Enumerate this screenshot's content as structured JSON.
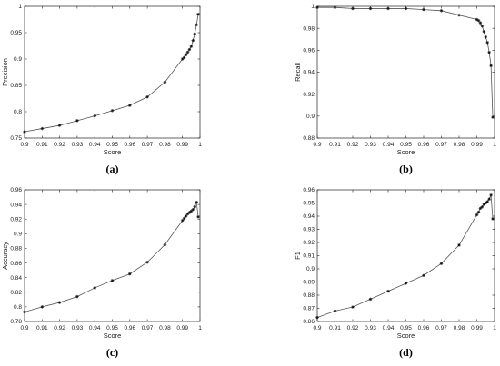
{
  "charts": [
    {
      "panel": "(a)",
      "type": "line",
      "xlabel": "Score",
      "ylabel": "Precision",
      "xlim": [
        0.9,
        1.0
      ],
      "ylim": [
        0.75,
        1.0
      ],
      "xticks": [
        "0.9",
        "0.91",
        "0.92",
        "0.93",
        "0.94",
        "0.95",
        "0.96",
        "0.97",
        "0.98",
        "0.99",
        "1"
      ],
      "yticks": [
        "0.75",
        "0.8",
        "0.85",
        "0.9",
        "0.95",
        "1"
      ],
      "marker": "asterisk",
      "x": [
        0.9,
        0.91,
        0.92,
        0.93,
        0.94,
        0.95,
        0.96,
        0.97,
        0.98,
        0.99,
        0.991,
        0.992,
        0.993,
        0.994,
        0.995,
        0.996,
        0.997,
        0.998,
        0.999
      ],
      "y": [
        0.762,
        0.768,
        0.774,
        0.783,
        0.792,
        0.802,
        0.812,
        0.828,
        0.856,
        0.9,
        0.903,
        0.908,
        0.913,
        0.918,
        0.924,
        0.935,
        0.948,
        0.965,
        0.985
      ]
    },
    {
      "panel": "(b)",
      "type": "line",
      "xlabel": "Score",
      "ylabel": "Recall",
      "xlim": [
        0.9,
        1.0
      ],
      "ylim": [
        0.88,
        1.0
      ],
      "xticks": [
        "0.9",
        "0.91",
        "0.92",
        "0.93",
        "0.94",
        "0.95",
        "0.96",
        "0.97",
        "0.98",
        "0.99",
        "1"
      ],
      "yticks": [
        "0.88",
        "0.9",
        "0.92",
        "0.94",
        "0.96",
        "0.98",
        "1"
      ],
      "marker": "asterisk",
      "x": [
        0.9,
        0.91,
        0.92,
        0.93,
        0.94,
        0.95,
        0.96,
        0.97,
        0.98,
        0.99,
        0.991,
        0.992,
        0.993,
        0.994,
        0.995,
        0.996,
        0.997,
        0.998,
        0.999
      ],
      "y": [
        0.999,
        0.999,
        0.998,
        0.998,
        0.998,
        0.998,
        0.997,
        0.996,
        0.992,
        0.988,
        0.987,
        0.985,
        0.982,
        0.977,
        0.972,
        0.967,
        0.958,
        0.946,
        0.899
      ]
    },
    {
      "panel": "(c)",
      "type": "line",
      "xlabel": "Score",
      "ylabel": "Accuracy",
      "xlim": [
        0.9,
        1.0
      ],
      "ylim": [
        0.78,
        0.96
      ],
      "xticks": [
        "0.9",
        "0.91",
        "0.92",
        "0.93",
        "0.94",
        "0.95",
        "0.96",
        "0.97",
        "0.98",
        "0.99",
        "1"
      ],
      "yticks": [
        "0.78",
        "0.8",
        "0.82",
        "0.84",
        "0.86",
        "0.88",
        "0.9",
        "0.92",
        "0.94",
        "0.96"
      ],
      "marker": "asterisk",
      "x": [
        0.9,
        0.91,
        0.92,
        0.93,
        0.94,
        0.95,
        0.96,
        0.97,
        0.98,
        0.99,
        0.991,
        0.992,
        0.993,
        0.994,
        0.995,
        0.996,
        0.997,
        0.998,
        0.999
      ],
      "y": [
        0.793,
        0.8,
        0.806,
        0.814,
        0.826,
        0.836,
        0.845,
        0.861,
        0.885,
        0.918,
        0.921,
        0.924,
        0.927,
        0.929,
        0.931,
        0.933,
        0.937,
        0.943,
        0.923
      ]
    },
    {
      "panel": "(d)",
      "type": "line",
      "xlabel": "Score",
      "ylabel": "F1",
      "xlim": [
        0.9,
        1.0
      ],
      "ylim": [
        0.86,
        0.96
      ],
      "xticks": [
        "0.9",
        "0.91",
        "0.92",
        "0.93",
        "0.94",
        "0.95",
        "0.96",
        "0.97",
        "0.98",
        "0.99",
        "1"
      ],
      "yticks": [
        "0.86",
        "0.87",
        "0.88",
        "0.89",
        "0.9",
        "0.91",
        "0.92",
        "0.93",
        "0.94",
        "0.95",
        "0.96"
      ],
      "marker": "asterisk",
      "x": [
        0.9,
        0.91,
        0.92,
        0.93,
        0.94,
        0.95,
        0.96,
        0.97,
        0.98,
        0.99,
        0.991,
        0.992,
        0.993,
        0.994,
        0.995,
        0.996,
        0.997,
        0.998,
        0.999
      ],
      "y": [
        0.863,
        0.868,
        0.871,
        0.877,
        0.883,
        0.889,
        0.895,
        0.904,
        0.918,
        0.941,
        0.943,
        0.946,
        0.947,
        0.949,
        0.95,
        0.951,
        0.953,
        0.956,
        0.938
      ]
    }
  ],
  "colors": {
    "line": "#555555",
    "marker": "#111111",
    "axis": "#222222",
    "background": "#ffffff"
  }
}
